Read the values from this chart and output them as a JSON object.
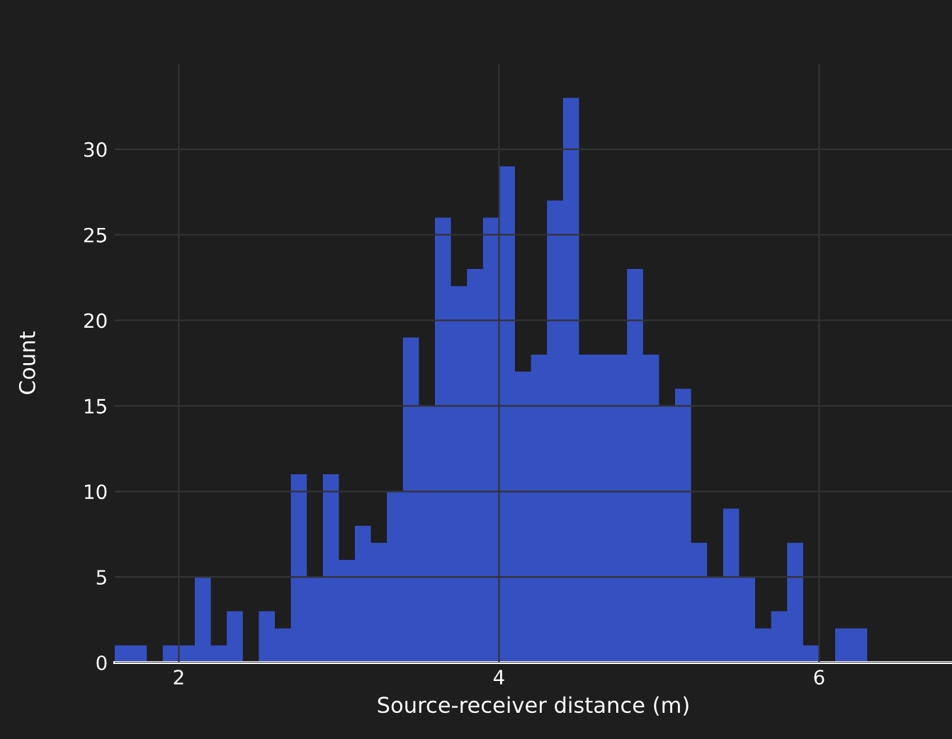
{
  "chart_data": {
    "type": "histogram",
    "xlabel": "Source-receiver distance (m)",
    "ylabel": "Count",
    "bins": [
      1.6,
      1.7,
      1.8,
      1.9,
      2.0,
      2.1,
      2.2,
      2.3,
      2.4,
      2.5,
      2.6,
      2.7,
      2.8,
      2.9,
      3.0,
      3.1,
      3.2,
      3.3,
      3.4,
      3.5,
      3.6,
      3.7,
      3.8,
      3.9,
      4.0,
      4.1,
      4.2,
      4.3,
      4.4,
      4.5,
      4.6,
      4.7,
      4.8,
      4.9,
      5.0,
      5.1,
      5.2,
      5.3,
      5.4,
      5.5,
      5.6,
      5.7,
      5.8,
      5.9,
      6.0,
      6.1,
      6.2,
      6.3
    ],
    "values": [
      1,
      1,
      0,
      1,
      1,
      5,
      1,
      3,
      0,
      3,
      2,
      11,
      5,
      11,
      6,
      8,
      7,
      10,
      19,
      15,
      26,
      22,
      23,
      26,
      29,
      17,
      18,
      27,
      33,
      18,
      18,
      18,
      23,
      18,
      15,
      16,
      7,
      5,
      9,
      5,
      2,
      3,
      7,
      1,
      0,
      2,
      2
    ],
    "color": "#3550c0",
    "xlim": [
      1.6,
      6.83
    ],
    "ylim": [
      0,
      35
    ],
    "xticks": [
      2,
      4,
      6
    ],
    "yticks": [
      0,
      5,
      10,
      15,
      20,
      25,
      30
    ],
    "grid": true
  }
}
